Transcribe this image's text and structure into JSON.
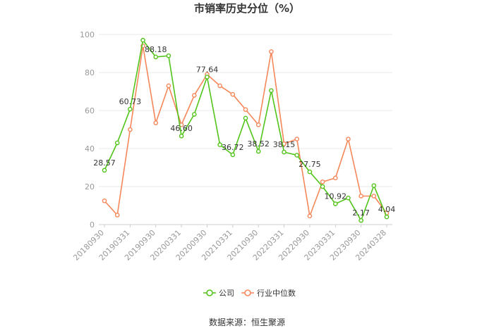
{
  "chart_data": {
    "type": "line",
    "title": "市销率历史分位（%）",
    "source": "数据来源：恒生聚源",
    "ylim": [
      0,
      100
    ],
    "yticks": [
      0,
      20,
      40,
      60,
      80,
      100
    ],
    "grid": true,
    "legend_position": "bottom",
    "x": [
      "20180930",
      "20181231",
      "20190331",
      "20190630",
      "20190930",
      "20191231",
      "20200331",
      "20200630",
      "20200930",
      "20201231",
      "20210331",
      "20210630",
      "20210930",
      "20211231",
      "20220331",
      "20220630",
      "20220930",
      "20221231",
      "20230331",
      "20230630",
      "20230930",
      "20231231",
      "20240328"
    ],
    "xtick_labels": [
      "20180930",
      "20190331",
      "20190930",
      "20200331",
      "20200930",
      "20210331",
      "20210930",
      "20220331",
      "20220930",
      "20230331",
      "20230930",
      "20240328"
    ],
    "series": [
      {
        "name": "公司",
        "color": "#52c41a",
        "values": [
          28.57,
          43.0,
          60.73,
          97.0,
          88.18,
          88.8,
          46.6,
          58.0,
          77.64,
          42.0,
          36.72,
          56.0,
          38.52,
          70.5,
          38.15,
          36.5,
          27.75,
          20.0,
          10.92,
          14.0,
          2.17,
          20.5,
          4.04
        ],
        "labels": [
          "28.57",
          "",
          "60.73",
          "",
          "88.18",
          "",
          "46.60",
          "",
          "77.64",
          "",
          "36.72",
          "",
          "38.52",
          "",
          "38.15",
          "",
          "27.75",
          "",
          "10.92",
          "",
          "2.17",
          "",
          "4.04"
        ]
      },
      {
        "name": "行业中位数",
        "color": "#f5875a",
        "values": [
          12.5,
          5.0,
          50.0,
          94.0,
          53.5,
          73.0,
          52.5,
          68.0,
          79.0,
          73.0,
          68.5,
          60.5,
          52.5,
          91.0,
          42.5,
          45.0,
          4.5,
          22.5,
          24.5,
          45.0,
          15.0,
          15.0,
          6.0
        ]
      }
    ]
  }
}
